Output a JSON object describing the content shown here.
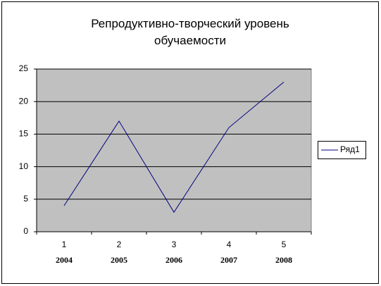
{
  "chart_data": {
    "type": "line",
    "title": "Репродуктивно-творческий уровень обучаемости",
    "categories": [
      "1",
      "2",
      "3",
      "4",
      "5"
    ],
    "year_labels": [
      "2004",
      "2005",
      "2006",
      "2007",
      "2008"
    ],
    "series": [
      {
        "name": "Ряд1",
        "color": "#000080",
        "values": [
          4,
          17,
          3,
          16,
          23
        ]
      }
    ],
    "ylim": [
      0,
      25
    ],
    "yticks": [
      0,
      5,
      10,
      15,
      20,
      25
    ],
    "grid": true,
    "legend": "right"
  }
}
